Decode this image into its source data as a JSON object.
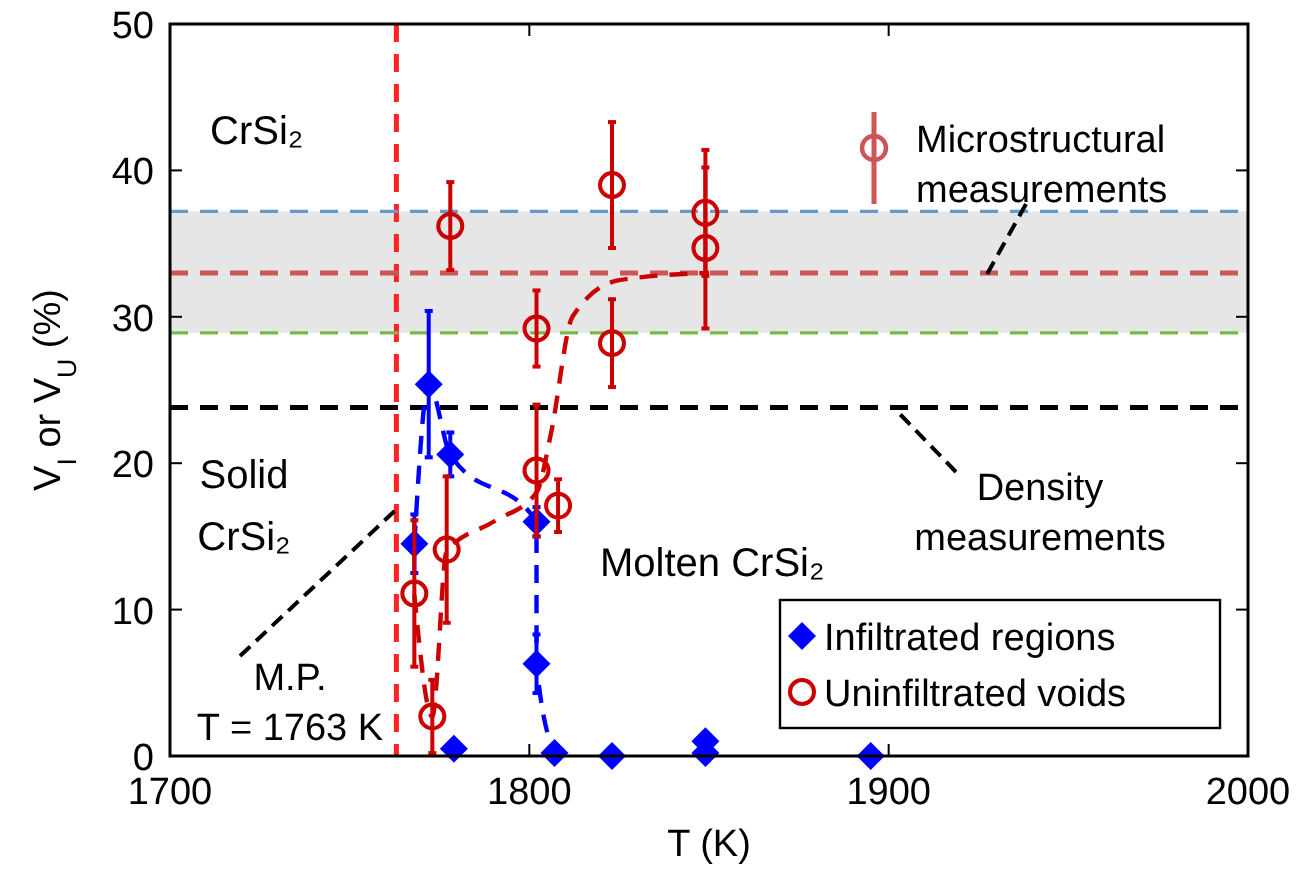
{
  "chart_data": {
    "type": "scatter",
    "xlabel": "T (K)",
    "ylabel": "V$_{I}$ or V$_{U}$ (%)",
    "xlim": [
      1700,
      2000
    ],
    "xticks": [
      1700,
      1800,
      1900,
      2000
    ],
    "ylim": [
      0,
      50
    ],
    "yticks": [
      0,
      10,
      20,
      30,
      40,
      50
    ],
    "legend": "bottom right",
    "annotations": [
      "CrSi₂",
      "Solid\nCrSi₂",
      "Molten CrSi₂"
    ],
    "bands": [
      {
        "axis": "y",
        "from": 28.9,
        "to": 37.2,
        "color": "#e6e6e6"
      }
    ],
    "ref_lines": [
      {
        "axis": "x",
        "value": 1763,
        "label": "M.P.\nT = 1763 K",
        "color": "#ff2222",
        "line_style": "dashed"
      },
      {
        "axis": "y",
        "value": 33,
        "label": "Microstructural\nmeasurements",
        "color": "#cc5555",
        "line_style": "dashed"
      },
      {
        "axis": "y",
        "value": 23.8,
        "label": "Density\nmeasurements",
        "color": "#000000",
        "line_style": "dashed"
      },
      {
        "axis": "y",
        "value": 28.9,
        "color": "#77bb44",
        "line_style": "dashed"
      },
      {
        "axis": "y",
        "value": 37.2,
        "color": "#6699cc",
        "line_style": "dashed"
      }
    ],
    "series": [
      {
        "type": "line",
        "color": "#0000ff",
        "marker": "none",
        "line_style": "dashed",
        "x": [
          1768,
          1772,
          1778,
          1802,
          1802,
          1807
        ],
        "values": [
          14.5,
          25.4,
          20.6,
          16,
          6.3,
          0.2
        ]
      },
      {
        "type": "line",
        "color": "#cc0000",
        "marker": "none",
        "line_style": "dashed",
        "x": [
          1768,
          1773,
          1777,
          1790,
          1802,
          1806,
          1812,
          1825,
          1850
        ],
        "values": [
          11,
          2.7,
          14,
          16,
          18,
          22,
          30,
          32.5,
          33
        ]
      },
      {
        "name": "Infiltrated regions",
        "color": "#0000ff",
        "marker": "diamond",
        "x": [
          1768,
          1772,
          1778,
          1779,
          1802,
          1802,
          1807,
          1823,
          1849,
          1849,
          1895
        ],
        "values": [
          14.5,
          25.4,
          20.6,
          0.5,
          16,
          6.3,
          0.2,
          0,
          1,
          0.2,
          0
        ],
        "errors": [
          2,
          5,
          1.5,
          null,
          1,
          2,
          null,
          null,
          null,
          null,
          null
        ]
      },
      {
        "name": "Uninfiltrated voids",
        "color": "#cc0000",
        "marker": "circle",
        "x": [
          1768,
          1773,
          1777,
          1778,
          1802,
          1802,
          1808,
          1823,
          1823,
          1849,
          1849
        ],
        "values": [
          11.1,
          2.7,
          14.1,
          36.2,
          29.2,
          19.5,
          17.1,
          39,
          28.2,
          37.1,
          34.7
        ],
        "errors": [
          5,
          2.5,
          5,
          3,
          2.6,
          4.5,
          1.8,
          4.3,
          3,
          4.3,
          5.5
        ]
      }
    ]
  }
}
